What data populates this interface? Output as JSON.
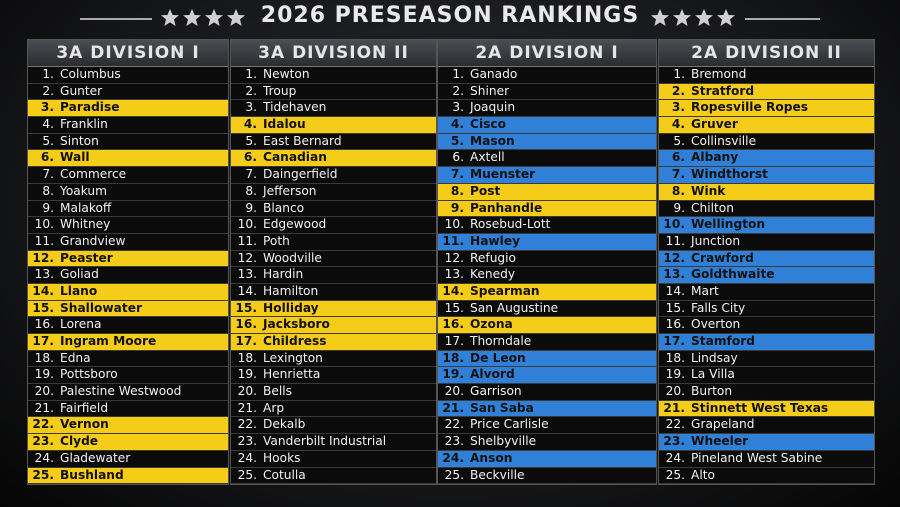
{
  "title": "2026 PRESEASON RANKINGS",
  "columns": [
    {
      "header": "3A DIVISION I",
      "rows": [
        {
          "rank": "1.",
          "name": "Columbus"
        },
        {
          "rank": "2.",
          "name": "Gunter"
        },
        {
          "rank": "3.",
          "name": "Paradise",
          "highlight": "#f5cc17"
        },
        {
          "rank": "4.",
          "name": "Franklin"
        },
        {
          "rank": "5.",
          "name": "Sinton"
        },
        {
          "rank": "6.",
          "name": "Wall",
          "highlight": "#f5cc17"
        },
        {
          "rank": "7.",
          "name": "Commerce"
        },
        {
          "rank": "8.",
          "name": "Yoakum"
        },
        {
          "rank": "9.",
          "name": "Malakoff"
        },
        {
          "rank": "10.",
          "name": "Whitney"
        },
        {
          "rank": "11.",
          "name": "Grandview"
        },
        {
          "rank": "12.",
          "name": "Peaster",
          "highlight": "#f5cc17"
        },
        {
          "rank": "13.",
          "name": "Goliad"
        },
        {
          "rank": "14.",
          "name": "Llano",
          "highlight": "#f5cc17"
        },
        {
          "rank": "15.",
          "name": "Shallowater",
          "highlight": "#f5cc17"
        },
        {
          "rank": "16.",
          "name": "Lorena"
        },
        {
          "rank": "17.",
          "name": "Ingram Moore",
          "highlight": "#f5cc17"
        },
        {
          "rank": "18.",
          "name": "Edna"
        },
        {
          "rank": "19.",
          "name": "Pottsboro"
        },
        {
          "rank": "20.",
          "name": "Palestine Westwood"
        },
        {
          "rank": "21.",
          "name": "Fairfield"
        },
        {
          "rank": "22.",
          "name": "Vernon",
          "highlight": "#f5cc17"
        },
        {
          "rank": "23.",
          "name": "Clyde",
          "highlight": "#f5cc17"
        },
        {
          "rank": "24.",
          "name": "Gladewater"
        },
        {
          "rank": "25.",
          "name": "Bushland",
          "highlight": "#f5cc17"
        }
      ]
    },
    {
      "header": "3A DIVISION II",
      "rows": [
        {
          "rank": "1.",
          "name": "Newton"
        },
        {
          "rank": "2.",
          "name": "Troup"
        },
        {
          "rank": "3.",
          "name": "Tidehaven"
        },
        {
          "rank": "4.",
          "name": "Idalou",
          "highlight": "#f5cc17"
        },
        {
          "rank": "5.",
          "name": "East Bernard"
        },
        {
          "rank": "6.",
          "name": "Canadian",
          "highlight": "#f5cc17"
        },
        {
          "rank": "7.",
          "name": "Daingerfield"
        },
        {
          "rank": "8.",
          "name": "Jefferson"
        },
        {
          "rank": "9.",
          "name": "Blanco"
        },
        {
          "rank": "10.",
          "name": "Edgewood"
        },
        {
          "rank": "11.",
          "name": "Poth"
        },
        {
          "rank": "12.",
          "name": "Woodville"
        },
        {
          "rank": "13.",
          "name": "Hardin"
        },
        {
          "rank": "14.",
          "name": "Hamilton"
        },
        {
          "rank": "15.",
          "name": "Holliday",
          "highlight": "#f5cc17"
        },
        {
          "rank": "16.",
          "name": "Jacksboro",
          "highlight": "#f5cc17"
        },
        {
          "rank": "17.",
          "name": "Childress",
          "highlight": "#f5cc17"
        },
        {
          "rank": "18.",
          "name": "Lexington"
        },
        {
          "rank": "19.",
          "name": "Henrietta"
        },
        {
          "rank": "20.",
          "name": "Bells"
        },
        {
          "rank": "21.",
          "name": "Arp"
        },
        {
          "rank": "22.",
          "name": "Dekalb"
        },
        {
          "rank": "23.",
          "name": "Vanderbilt Industrial"
        },
        {
          "rank": "24.",
          "name": "Hooks"
        },
        {
          "rank": "25.",
          "name": "Cotulla"
        }
      ]
    },
    {
      "header": "2A DIVISION I",
      "rows": [
        {
          "rank": "1.",
          "name": "Ganado"
        },
        {
          "rank": "2.",
          "name": "Shiner"
        },
        {
          "rank": "3.",
          "name": "Joaquin"
        },
        {
          "rank": "4.",
          "name": "Cisco",
          "highlight": "#2f80d6"
        },
        {
          "rank": "5.",
          "name": "Mason",
          "highlight": "#2f80d6"
        },
        {
          "rank": "6.",
          "name": "Axtell"
        },
        {
          "rank": "7.",
          "name": "Muenster",
          "highlight": "#2f80d6"
        },
        {
          "rank": "8.",
          "name": "Post",
          "highlight": "#f5cc17"
        },
        {
          "rank": "9.",
          "name": "Panhandle",
          "highlight": "#f5cc17"
        },
        {
          "rank": "10.",
          "name": "Rosebud-Lott"
        },
        {
          "rank": "11.",
          "name": "Hawley",
          "highlight": "#2f80d6"
        },
        {
          "rank": "12.",
          "name": "Refugio"
        },
        {
          "rank": "13.",
          "name": "Kenedy"
        },
        {
          "rank": "14.",
          "name": "Spearman",
          "highlight": "#f5cc17"
        },
        {
          "rank": "15.",
          "name": "San Augustine"
        },
        {
          "rank": "16.",
          "name": "Ozona",
          "highlight": "#f5cc17"
        },
        {
          "rank": "17.",
          "name": "Thorndale"
        },
        {
          "rank": "18.",
          "name": "De Leon",
          "highlight": "#2f80d6"
        },
        {
          "rank": "19.",
          "name": "Alvord",
          "highlight": "#2f80d6"
        },
        {
          "rank": "20.",
          "name": "Garrison"
        },
        {
          "rank": "21.",
          "name": "San Saba",
          "highlight": "#2f80d6"
        },
        {
          "rank": "22.",
          "name": "Price Carlisle"
        },
        {
          "rank": "23.",
          "name": "Shelbyville"
        },
        {
          "rank": "24.",
          "name": "Anson",
          "highlight": "#2f80d6"
        },
        {
          "rank": "25.",
          "name": "Beckville"
        }
      ]
    },
    {
      "header": "2A DIVISION II",
      "rows": [
        {
          "rank": "1.",
          "name": "Bremond"
        },
        {
          "rank": "2.",
          "name": "Stratford",
          "highlight": "#f5cc17"
        },
        {
          "rank": "3.",
          "name": "Ropesville Ropes",
          "highlight": "#f5cc17"
        },
        {
          "rank": "4.",
          "name": "Gruver",
          "highlight": "#f5cc17"
        },
        {
          "rank": "5.",
          "name": "Collinsville"
        },
        {
          "rank": "6.",
          "name": "Albany",
          "highlight": "#2f80d6"
        },
        {
          "rank": "7.",
          "name": "Windthorst",
          "highlight": "#2f80d6"
        },
        {
          "rank": "8.",
          "name": "Wink",
          "highlight": "#f5cc17"
        },
        {
          "rank": "9.",
          "name": "Chilton"
        },
        {
          "rank": "10.",
          "name": "Wellington",
          "highlight": "#2f80d6"
        },
        {
          "rank": "11.",
          "name": "Junction"
        },
        {
          "rank": "12.",
          "name": "Crawford",
          "highlight": "#2f80d6"
        },
        {
          "rank": "13.",
          "name": "Goldthwaite",
          "highlight": "#2f80d6"
        },
        {
          "rank": "14.",
          "name": "Mart"
        },
        {
          "rank": "15.",
          "name": "Falls City"
        },
        {
          "rank": "16.",
          "name": "Overton"
        },
        {
          "rank": "17.",
          "name": "Stamford",
          "highlight": "#2f80d6"
        },
        {
          "rank": "18.",
          "name": "Lindsay"
        },
        {
          "rank": "19.",
          "name": "La Villa"
        },
        {
          "rank": "20.",
          "name": "Burton"
        },
        {
          "rank": "21.",
          "name": "Stinnett West Texas",
          "highlight": "#f5cc17"
        },
        {
          "rank": "22.",
          "name": "Grapeland"
        },
        {
          "rank": "23.",
          "name": "Wheeler",
          "highlight": "#2f80d6"
        },
        {
          "rank": "24.",
          "name": "Pineland West Sabine"
        },
        {
          "rank": "25.",
          "name": "Alto"
        }
      ]
    }
  ]
}
